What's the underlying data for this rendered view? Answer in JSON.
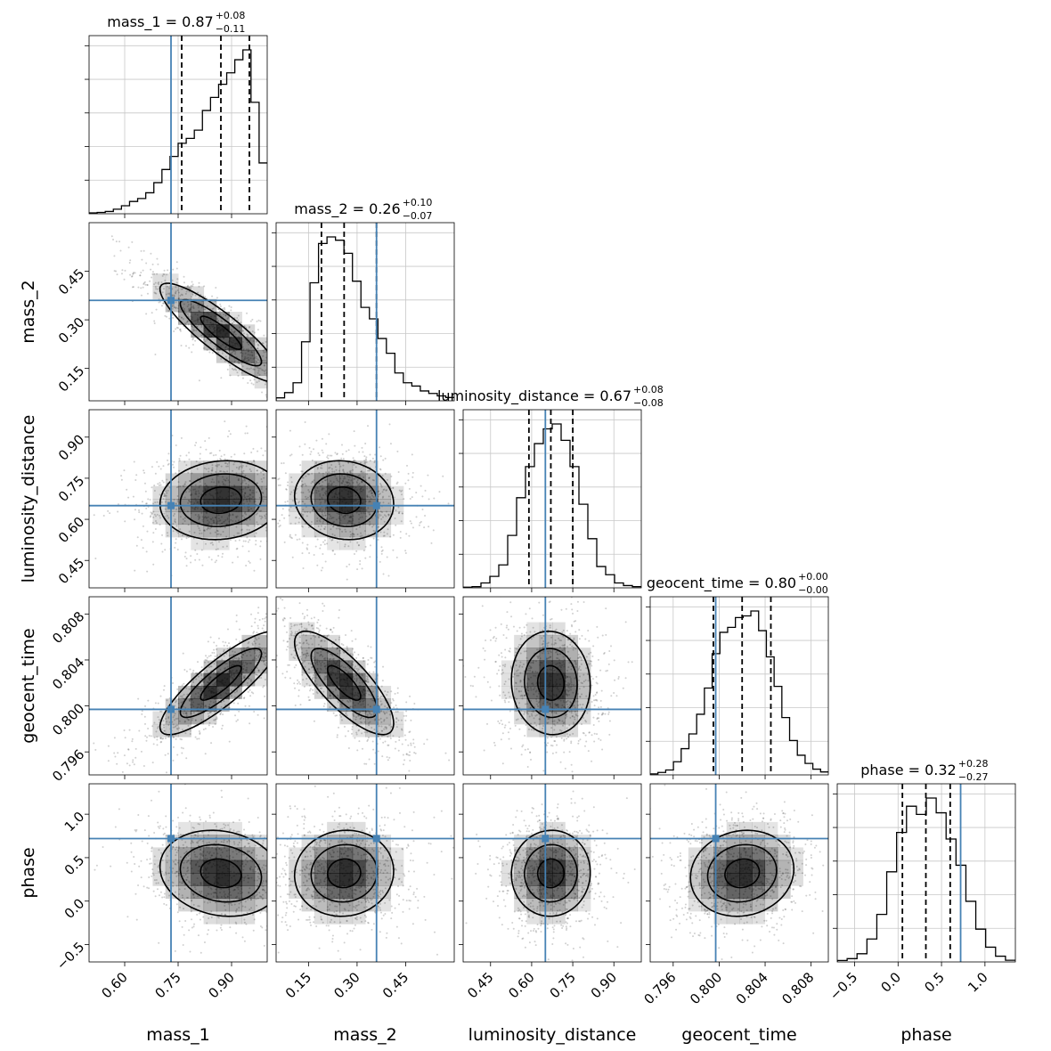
{
  "chart_data": {
    "type": "corner",
    "parameters": [
      {
        "name": "mass_1",
        "range": [
          0.5,
          1.0
        ],
        "ticks": [
          "0.60",
          "0.75",
          "0.90"
        ],
        "tick_values": [
          0.6,
          0.75,
          0.9
        ],
        "title": {
          "label": "mass_1 = 0.87",
          "plus": "+0.08",
          "minus": "−0.11"
        },
        "quantiles": [
          0.76,
          0.87,
          0.95
        ],
        "truth": 0.73,
        "hist": [
          0.005,
          0.008,
          0.014,
          0.028,
          0.049,
          0.075,
          0.093,
          0.128,
          0.19,
          0.27,
          0.35,
          0.43,
          0.46,
          0.51,
          0.63,
          0.71,
          0.79,
          0.86,
          0.94,
          1.0,
          0.68,
          0.31
        ]
      },
      {
        "name": "mass_2",
        "range": [
          0.05,
          0.6
        ],
        "ticks": [
          "0.15",
          "0.30",
          "0.45"
        ],
        "tick_values": [
          0.15,
          0.3,
          0.45
        ],
        "title": {
          "label": "mass_2 = 0.26",
          "plus": "+0.10",
          "minus": "−0.07"
        },
        "quantiles": [
          0.19,
          0.26,
          0.36
        ],
        "truth": 0.36,
        "hist": [
          0.018,
          0.05,
          0.11,
          0.36,
          0.72,
          0.96,
          1.0,
          0.98,
          0.9,
          0.73,
          0.57,
          0.5,
          0.38,
          0.29,
          0.17,
          0.11,
          0.09,
          0.06,
          0.045,
          0.03,
          0.02
        ]
      },
      {
        "name": "luminosity_distance",
        "range": [
          0.35,
          1.0
        ],
        "ticks": [
          "0.45",
          "0.60",
          "0.75",
          "0.90"
        ],
        "tick_values": [
          0.45,
          0.6,
          0.75,
          0.9
        ],
        "title": {
          "label": "luminosity_distance = 0.67",
          "plus": "+0.08",
          "minus": "−0.08"
        },
        "quantiles": [
          0.59,
          0.67,
          0.75
        ],
        "truth": 0.65,
        "hist": [
          0.004,
          0.007,
          0.03,
          0.07,
          0.14,
          0.32,
          0.55,
          0.74,
          0.88,
          0.97,
          1.0,
          0.9,
          0.74,
          0.51,
          0.3,
          0.13,
          0.08,
          0.03,
          0.014,
          0.007
        ]
      },
      {
        "name": "geocent_time",
        "range": [
          0.794,
          0.8095
        ],
        "ticks": [
          "0.796",
          "0.800",
          "0.804",
          "0.808"
        ],
        "tick_values": [
          0.796,
          0.8,
          0.804,
          0.808
        ],
        "title": {
          "label": "geocent_time = 0.80",
          "plus": "+0.00",
          "minus": "−0.00"
        },
        "quantiles": [
          0.7995,
          0.802,
          0.8045
        ],
        "truth": 0.7997,
        "hist": [
          0.006,
          0.015,
          0.03,
          0.08,
          0.16,
          0.25,
          0.37,
          0.53,
          0.74,
          0.87,
          0.9,
          0.96,
          0.97,
          1.0,
          0.88,
          0.72,
          0.54,
          0.35,
          0.21,
          0.12,
          0.07,
          0.035,
          0.018
        ]
      },
      {
        "name": "phase",
        "range": [
          -0.7,
          1.35
        ],
        "ticks": [
          "−0.5",
          "0.0",
          "0.5",
          "1.0"
        ],
        "tick_values": [
          -0.5,
          0.0,
          0.5,
          1.0
        ],
        "title": {
          "label": "phase = 0.32",
          "plus": "+0.28",
          "minus": "−0.27"
        },
        "quantiles": [
          0.05,
          0.32,
          0.6
        ],
        "truth": 0.72,
        "hist": [
          0.009,
          0.02,
          0.05,
          0.14,
          0.29,
          0.55,
          0.79,
          0.95,
          0.9,
          1.0,
          0.91,
          0.75,
          0.59,
          0.37,
          0.2,
          0.09,
          0.035,
          0.01
        ]
      }
    ],
    "correlations": [
      [
        0,
        0,
        0,
        0,
        0
      ],
      [
        -0.88,
        0,
        0,
        0,
        0
      ],
      [
        0.1,
        -0.1,
        0,
        0,
        0
      ],
      [
        0.85,
        -0.78,
        -0.05,
        0,
        0
      ],
      [
        -0.15,
        0.05,
        0.02,
        0.1,
        0
      ]
    ],
    "truth_color": "#4682b4",
    "grid": true,
    "contour_levels": 3,
    "density_color": "#000000"
  }
}
